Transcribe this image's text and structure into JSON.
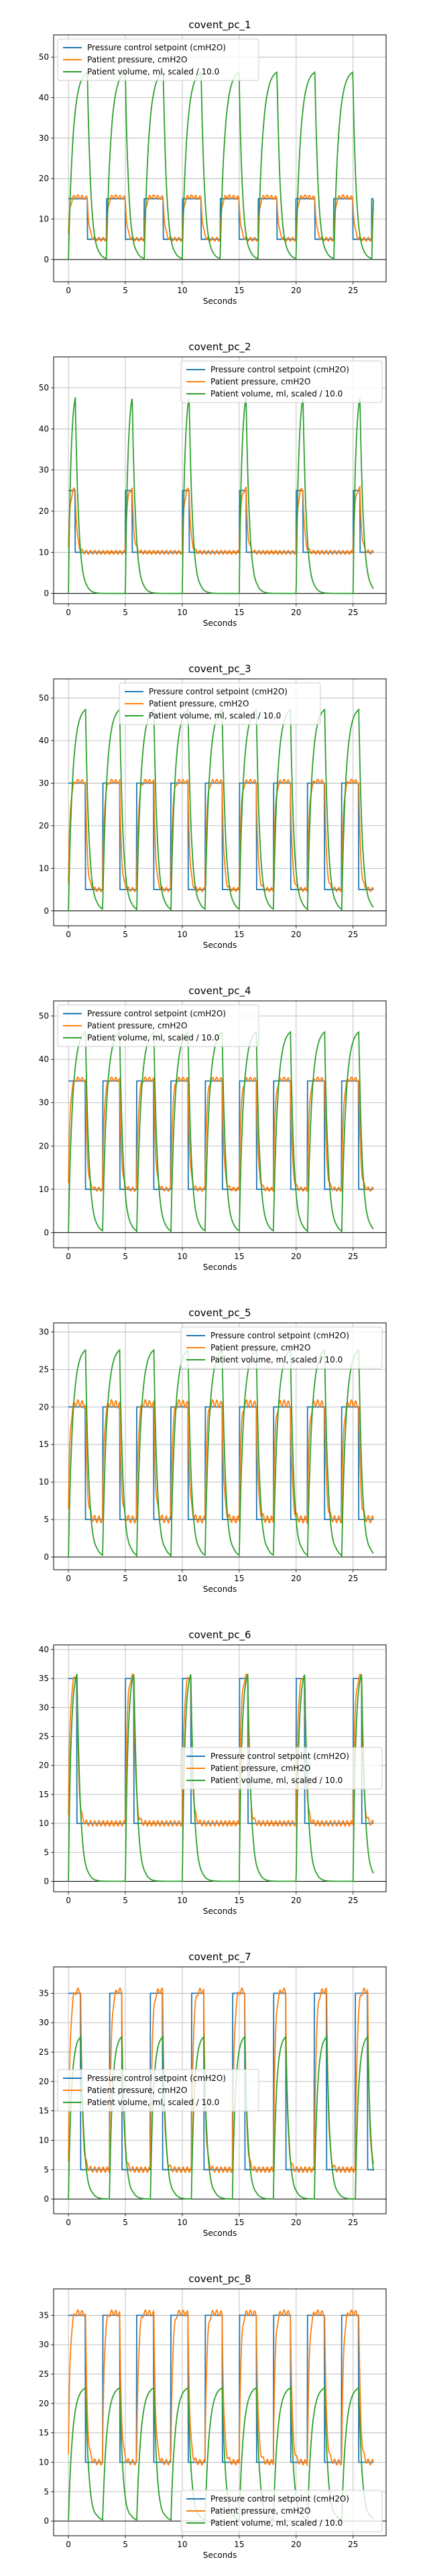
{
  "colors": {
    "setpoint": "#1f77b4",
    "pressure": "#ff7f0e",
    "volume": "#2ca02c",
    "grid": "#b0b0b0",
    "zero_line": "#000000"
  },
  "chart_data": [
    {
      "type": "line",
      "title": "covent_pc_1",
      "xlabel": "Seconds",
      "ylabel": "",
      "xlim": [
        -1.3,
        27.9
      ],
      "ylim": [
        -5.5,
        55.5
      ],
      "xticks": [
        0,
        5,
        10,
        15,
        20,
        25
      ],
      "yticks": [
        0,
        10,
        20,
        30,
        40,
        50
      ],
      "grid": true,
      "legend_position": "upper-left",
      "params": {
        "period": 3.33,
        "duty": 0.5,
        "peep": 5,
        "pip": 15,
        "vmax": 47
      },
      "series": [
        {
          "name": "Pressure control setpoint (cmH2O)",
          "key": "setpoint"
        },
        {
          "name": "Patient pressure, cmH2O",
          "key": "pressure"
        },
        {
          "name": "Patient volume, ml, scaled / 10.0",
          "key": "volume"
        }
      ]
    },
    {
      "type": "line",
      "title": "covent_pc_2",
      "xlabel": "Seconds",
      "ylabel": "",
      "xlim": [
        -1.3,
        27.9
      ],
      "ylim": [
        -2.5,
        57.5
      ],
      "xticks": [
        0,
        5,
        10,
        15,
        20,
        25
      ],
      "yticks": [
        0,
        10,
        20,
        30,
        40,
        50
      ],
      "grid": true,
      "legend_position": "upper-right",
      "params": {
        "period": 5,
        "duty": 0.12,
        "peep": 10,
        "pip": 25,
        "vmax": 51
      },
      "series": [
        {
          "name": "Pressure control setpoint (cmH2O)",
          "key": "setpoint"
        },
        {
          "name": "Patient pressure, cmH2O",
          "key": "pressure"
        },
        {
          "name": "Patient volume, ml, scaled / 10.0",
          "key": "volume"
        }
      ]
    },
    {
      "type": "line",
      "title": "covent_pc_3",
      "xlabel": "Seconds",
      "ylabel": "",
      "xlim": [
        -1.3,
        27.9
      ],
      "ylim": [
        -3.5,
        54.5
      ],
      "xticks": [
        0,
        5,
        10,
        15,
        20,
        25
      ],
      "yticks": [
        0,
        10,
        20,
        30,
        40,
        50
      ],
      "grid": true,
      "legend_position": "upper-center",
      "params": {
        "period": 3,
        "duty": 0.5,
        "peep": 5,
        "pip": 30,
        "vmax": 48
      },
      "series": [
        {
          "name": "Pressure control setpoint (cmH2O)",
          "key": "setpoint"
        },
        {
          "name": "Patient pressure, cmH2O",
          "key": "pressure"
        },
        {
          "name": "Patient volume, ml, scaled / 10.0",
          "key": "volume"
        }
      ]
    },
    {
      "type": "line",
      "title": "covent_pc_4",
      "xlabel": "Seconds",
      "ylabel": "",
      "xlim": [
        -1.3,
        27.9
      ],
      "ylim": [
        -3.5,
        53.5
      ],
      "xticks": [
        0,
        5,
        10,
        15,
        20,
        25
      ],
      "yticks": [
        0,
        10,
        20,
        30,
        40,
        50
      ],
      "grid": true,
      "legend_position": "upper-left",
      "params": {
        "period": 3,
        "duty": 0.5,
        "peep": 10,
        "pip": 35,
        "vmax": 47
      },
      "series": [
        {
          "name": "Pressure control setpoint (cmH2O)",
          "key": "setpoint"
        },
        {
          "name": "Patient pressure, cmH2O",
          "key": "pressure"
        },
        {
          "name": "Patient volume, ml, scaled / 10.0",
          "key": "volume"
        }
      ]
    },
    {
      "type": "line",
      "title": "covent_pc_5",
      "xlabel": "Seconds",
      "ylabel": "",
      "xlim": [
        -1.3,
        27.9
      ],
      "ylim": [
        -1.7,
        31.2
      ],
      "xticks": [
        0,
        5,
        10,
        15,
        20,
        25
      ],
      "yticks": [
        0,
        5,
        10,
        15,
        20,
        25,
        30
      ],
      "grid": true,
      "legend_position": "upper-right",
      "params": {
        "period": 3,
        "duty": 0.5,
        "peep": 5,
        "pip": 20,
        "vmax": 28
      },
      "series": [
        {
          "name": "Pressure control setpoint (cmH2O)",
          "key": "setpoint"
        },
        {
          "name": "Patient pressure, cmH2O",
          "key": "pressure"
        },
        {
          "name": "Patient volume, ml, scaled / 10.0",
          "key": "volume"
        }
      ]
    },
    {
      "type": "line",
      "title": "covent_pc_6",
      "xlabel": "Seconds",
      "ylabel": "",
      "xlim": [
        -1.3,
        27.9
      ],
      "ylim": [
        -1.8,
        40.8
      ],
      "xticks": [
        0,
        5,
        10,
        15,
        20,
        25
      ],
      "yticks": [
        0,
        5,
        10,
        15,
        20,
        25,
        30,
        35,
        40
      ],
      "grid": true,
      "legend_position": "center-right",
      "params": {
        "period": 5,
        "duty": 0.15,
        "peep": 10,
        "pip": 35,
        "vmax": 37
      },
      "series": [
        {
          "name": "Pressure control setpoint (cmH2O)",
          "key": "setpoint"
        },
        {
          "name": "Patient pressure, cmH2O",
          "key": "pressure"
        },
        {
          "name": "Patient volume, ml, scaled / 10.0",
          "key": "volume"
        }
      ]
    },
    {
      "type": "line",
      "title": "covent_pc_7",
      "xlabel": "Seconds",
      "ylabel": "",
      "xlim": [
        -1.3,
        27.9
      ],
      "ylim": [
        -2.5,
        39.5
      ],
      "xticks": [
        0,
        5,
        10,
        15,
        20,
        25
      ],
      "yticks": [
        0,
        5,
        10,
        15,
        20,
        25,
        30,
        35
      ],
      "grid": true,
      "legend_position": "center-left",
      "params": {
        "period": 3.6,
        "duty": 0.3,
        "peep": 5,
        "pip": 35,
        "vmax": 28
      },
      "series": [
        {
          "name": "Pressure control setpoint (cmH2O)",
          "key": "setpoint"
        },
        {
          "name": "Patient pressure, cmH2O",
          "key": "pressure"
        },
        {
          "name": "Patient volume, ml, scaled / 10.0",
          "key": "volume"
        }
      ]
    },
    {
      "type": "line",
      "title": "covent_pc_8",
      "xlabel": "Seconds",
      "ylabel": "",
      "xlim": [
        -1.3,
        27.9
      ],
      "ylim": [
        -2.5,
        39.5
      ],
      "xticks": [
        0,
        5,
        10,
        15,
        20,
        25
      ],
      "yticks": [
        0,
        5,
        10,
        15,
        20,
        25,
        30,
        35
      ],
      "grid": true,
      "legend_position": "lower-right",
      "params": {
        "period": 3,
        "duty": 0.5,
        "peep": 10,
        "pip": 35,
        "vmax": 23
      },
      "series": [
        {
          "name": "Pressure control setpoint (cmH2O)",
          "key": "setpoint"
        },
        {
          "name": "Patient pressure, cmH2O",
          "key": "pressure"
        },
        {
          "name": "Patient volume, ml, scaled / 10.0",
          "key": "volume"
        }
      ]
    }
  ]
}
